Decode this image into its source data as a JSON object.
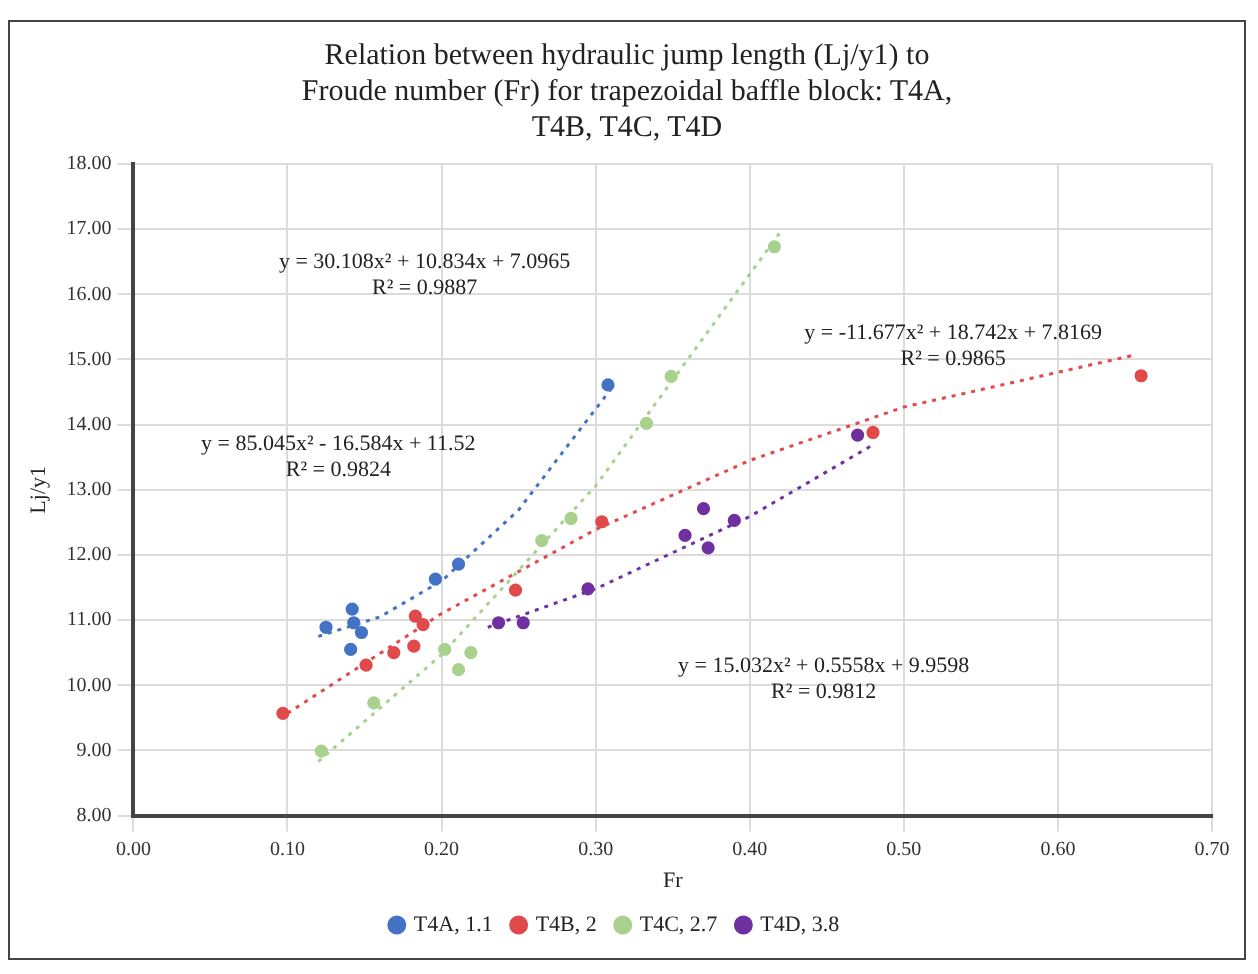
{
  "chart_data": {
    "type": "scatter",
    "title": "Relation between hydraulic jump length (Lj/y1) to Froude number (Fr) for trapezoidal baffle block: T4A, T4B, T4C, T4D",
    "xlabel": "Fr",
    "ylabel": "Lj/y1",
    "series": [
      {
        "name": "T4A, 1.1",
        "color": "#4472c4",
        "x": [
          0.125,
          0.142,
          0.143,
          0.148,
          0.141,
          0.196,
          0.211,
          0.308
        ],
        "values": [
          10.89,
          11.17,
          10.96,
          10.81,
          10.55,
          11.63,
          11.86,
          14.61
        ]
      },
      {
        "name": "T4B, 2",
        "color": "#e04a4a",
        "x": [
          0.097,
          0.151,
          0.169,
          0.182,
          0.183,
          0.188,
          0.248,
          0.304,
          0.48,
          0.654
        ],
        "values": [
          9.57,
          10.31,
          10.5,
          10.6,
          11.06,
          10.93,
          11.46,
          12.51,
          13.88,
          14.75
        ]
      },
      {
        "name": "T4C, 2.7",
        "color": "#a9d18e",
        "x": [
          0.122,
          0.156,
          0.202,
          0.211,
          0.219,
          0.265,
          0.284,
          0.333,
          0.349,
          0.416
        ],
        "values": [
          8.99,
          9.73,
          10.55,
          10.24,
          10.5,
          12.22,
          12.56,
          14.02,
          14.74,
          16.73
        ]
      },
      {
        "name": "T4D, 3.8",
        "color": "#7030a0",
        "x": [
          0.237,
          0.253,
          0.295,
          0.358,
          0.37,
          0.373,
          0.39,
          0.47
        ],
        "values": [
          10.96,
          10.96,
          11.48,
          12.3,
          12.71,
          12.11,
          12.53,
          13.84
        ]
      },
      {
        "type": "line",
        "marker": "none",
        "color": "#4472c4",
        "line_style": "dotted",
        "x": [
          0.12,
          0.16,
          0.2,
          0.25,
          0.31
        ],
        "values": [
          10.75,
          11.05,
          11.6,
          12.69,
          14.55
        ]
      },
      {
        "type": "line",
        "marker": "none",
        "color": "#e04a4a",
        "line_style": "dotted",
        "x": [
          0.1,
          0.2,
          0.3,
          0.4,
          0.5,
          0.65
        ],
        "values": [
          9.57,
          11.1,
          12.39,
          13.45,
          14.27,
          15.07
        ]
      },
      {
        "type": "line",
        "marker": "none",
        "color": "#a9d18e",
        "line_style": "dotted",
        "x": [
          0.12,
          0.2,
          0.3,
          0.42
        ],
        "values": [
          8.83,
          10.47,
          13.06,
          16.96
        ]
      },
      {
        "type": "line",
        "marker": "none",
        "color": "#7030a0",
        "line_style": "dotted",
        "x": [
          0.23,
          0.3,
          0.4,
          0.48
        ],
        "values": [
          10.89,
          11.48,
          12.59,
          13.69
        ]
      }
    ],
    "xlim": [
      0,
      0.7
    ],
    "xticks": [
      {
        "value": 0,
        "label": "0.00"
      },
      {
        "value": 0.1,
        "label": "0.10"
      },
      {
        "value": 0.2,
        "label": "0.20"
      },
      {
        "value": 0.3,
        "label": "0.30"
      },
      {
        "value": 0.4,
        "label": "0.40"
      },
      {
        "value": 0.5,
        "label": "0.50"
      },
      {
        "value": 0.6,
        "label": "0.60"
      },
      {
        "value": 0.7,
        "label": "0.70"
      }
    ],
    "ylim": [
      8,
      18
    ],
    "yticks": [
      {
        "value": 8,
        "label": "8.00"
      },
      {
        "value": 9,
        "label": "9.00"
      },
      {
        "value": 10,
        "label": "10.00"
      },
      {
        "value": 11,
        "label": "11.00"
      },
      {
        "value": 12,
        "label": "12.00"
      },
      {
        "value": 13,
        "label": "13.00"
      },
      {
        "value": 14,
        "label": "14.00"
      },
      {
        "value": 15,
        "label": "15.00"
      },
      {
        "value": 16,
        "label": "16.00"
      },
      {
        "value": 17,
        "label": "17.00"
      },
      {
        "value": 18,
        "label": "18.00"
      }
    ],
    "annotations": [
      "y = 30.108x² + 10.834x + 7.0965\nR² = 0.9887",
      "y = -11.677x² + 18.742x + 7.8169\nR² = 0.9865",
      "y = 85.045x² - 16.584x + 11.52\nR² = 0.9824",
      "y = 15.032x² + 0.5558x + 9.9598\nR² = 0.9812"
    ],
    "grid": true,
    "legend": "bottom",
    "marker": "circle"
  }
}
